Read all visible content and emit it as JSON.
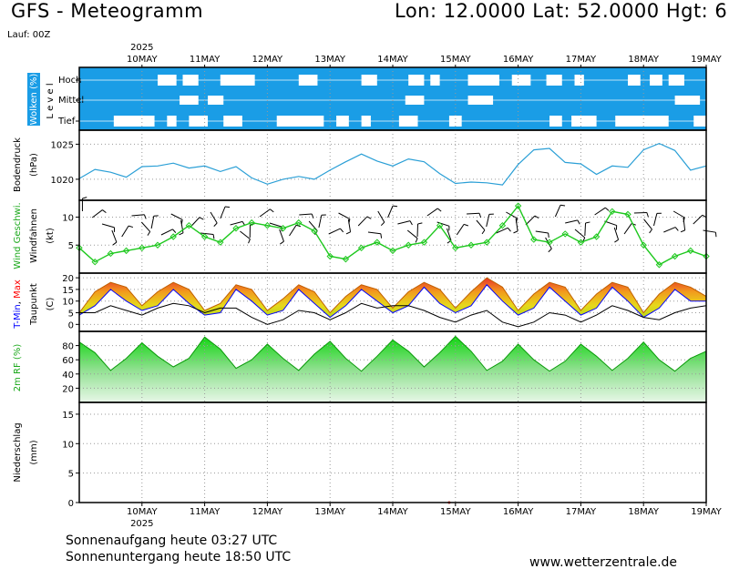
{
  "header": {
    "title": "GFS - Meteogramm",
    "location": "Lon: 12.0000  Lat: 52.0000  Hgt: 6",
    "run": "Lauf: 00Z"
  },
  "footer": {
    "sunrise": "Sonnenaufgang heute 03:27 UTC",
    "sunset": "Sonnenuntergang heute 18:50 UTC",
    "website": "www.wetterzentrale.de"
  },
  "colors": {
    "cloud_bg": "#1a9de6",
    "pressure_line": "#2a9fd6",
    "wind_line": "#1ec81e",
    "tmin": "#0000ff",
    "tmax": "#ff0000",
    "rh_fill": "#22cc22"
  },
  "chart_data": [
    {
      "type": "heatmap",
      "id": "clouds",
      "ylabel": "Wolken (%)",
      "ylabel2": "L e v e l",
      "levels": [
        "Hoch",
        "Mittel",
        "Tief"
      ],
      "x": [
        "10MAY",
        "11MAY",
        "12MAY",
        "13MAY",
        "14MAY",
        "15MAY",
        "16MAY",
        "17MAY",
        "18MAY",
        "19MAY"
      ],
      "year": "2025",
      "clear_spans": {
        "Hoch": [
          [
            10.25,
            10.55
          ],
          [
            10.65,
            10.9
          ],
          [
            11.25,
            11.8
          ],
          [
            12.5,
            12.8
          ],
          [
            13.5,
            13.75
          ],
          [
            14.25,
            14.5
          ],
          [
            14.6,
            14.75
          ],
          [
            15.2,
            15.7
          ],
          [
            15.9,
            16.2
          ],
          [
            16.45,
            16.7
          ],
          [
            16.9,
            17.05
          ],
          [
            17.75,
            17.95
          ],
          [
            18.1,
            18.3
          ],
          [
            18.4,
            18.65
          ]
        ],
        "Mittel": [
          [
            10.6,
            10.9
          ],
          [
            11.05,
            11.3
          ],
          [
            14.2,
            14.5
          ],
          [
            15.2,
            15.6
          ],
          [
            18.5,
            18.9
          ]
        ],
        "Tief": [
          [
            9.55,
            10.2
          ],
          [
            10.4,
            10.55
          ],
          [
            10.75,
            11.05
          ],
          [
            11.3,
            11.6
          ],
          [
            12.15,
            12.9
          ],
          [
            13.1,
            13.3
          ],
          [
            13.5,
            13.65
          ],
          [
            14.1,
            14.4
          ],
          [
            14.9,
            15.1
          ],
          [
            16.5,
            16.7
          ],
          [
            16.85,
            17.25
          ],
          [
            17.55,
            18.4
          ],
          [
            18.8,
            19.0
          ]
        ]
      }
    },
    {
      "type": "line",
      "id": "pressure",
      "ylabel": "Bodendruck",
      "ylabel2": "(hPa)",
      "ylim": [
        1017,
        1027
      ],
      "yticks": [
        1020,
        1025
      ],
      "x": [
        9.0,
        9.25,
        9.5,
        9.75,
        10.0,
        10.25,
        10.5,
        10.75,
        11.0,
        11.25,
        11.5,
        11.75,
        12.0,
        12.25,
        12.5,
        12.75,
        13.0,
        13.25,
        13.5,
        13.75,
        14.0,
        14.25,
        14.5,
        14.75,
        15.0,
        15.25,
        15.5,
        15.75,
        16.0,
        16.25,
        16.5,
        16.75,
        17.0,
        17.25,
        17.5,
        17.75,
        18.0,
        18.25,
        18.5,
        18.75,
        19.0
      ],
      "values": [
        1020.1,
        1021.4,
        1021.0,
        1020.3,
        1021.8,
        1021.9,
        1022.3,
        1021.6,
        1021.9,
        1021.1,
        1021.8,
        1020.2,
        1019.3,
        1020.0,
        1020.4,
        1020.0,
        1021.3,
        1022.5,
        1023.6,
        1022.6,
        1021.9,
        1022.9,
        1022.5,
        1020.8,
        1019.4,
        1019.6,
        1019.5,
        1019.2,
        1022.1,
        1024.2,
        1024.4,
        1022.4,
        1022.2,
        1020.7,
        1021.9,
        1021.7,
        1024.2,
        1025.1,
        1024.1,
        1021.3,
        1021.9
      ]
    },
    {
      "type": "line",
      "id": "wind",
      "ylabel": "Wind Geschwi.",
      "ylabel2": "Windfahnen",
      "ylabel3": "(kt)",
      "ylim": [
        0,
        13
      ],
      "yticks": [
        5,
        10
      ],
      "x": [
        9.0,
        9.25,
        9.5,
        9.75,
        10.0,
        10.25,
        10.5,
        10.75,
        11.0,
        11.25,
        11.5,
        11.75,
        12.0,
        12.25,
        12.5,
        12.75,
        13.0,
        13.25,
        13.5,
        13.75,
        14.0,
        14.25,
        14.5,
        14.75,
        15.0,
        15.25,
        15.5,
        15.75,
        16.0,
        16.25,
        16.5,
        16.75,
        17.0,
        17.25,
        17.5,
        17.75,
        18.0,
        18.25,
        18.5,
        18.75,
        19.0
      ],
      "values": [
        4.5,
        2.0,
        3.5,
        4.0,
        4.5,
        5.0,
        6.5,
        8.5,
        6.5,
        5.5,
        8.0,
        9.0,
        8.5,
        8.0,
        9.0,
        7.5,
        3.0,
        2.5,
        4.5,
        5.5,
        4.0,
        5.0,
        5.5,
        8.5,
        4.5,
        5.0,
        5.5,
        8.5,
        12.0,
        6.0,
        5.5,
        7.0,
        5.5,
        6.5,
        11.0,
        10.5,
        5.0,
        1.5,
        3.0,
        4.0,
        3.0
      ]
    },
    {
      "type": "area",
      "id": "temperature",
      "ylabel": "T-Min, Max",
      "ylabel2": "Taupunkt",
      "ylabel3": "(C)",
      "ylim": [
        -3,
        22
      ],
      "yticks": [
        0,
        5,
        10,
        15,
        20
      ],
      "x": [
        9.0,
        9.25,
        9.5,
        9.75,
        10.0,
        10.25,
        10.5,
        10.75,
        11.0,
        11.25,
        11.5,
        11.75,
        12.0,
        12.25,
        12.5,
        12.75,
        13.0,
        13.25,
        13.5,
        13.75,
        14.0,
        14.25,
        14.5,
        14.75,
        15.0,
        15.25,
        15.5,
        15.75,
        16.0,
        16.25,
        16.5,
        16.75,
        17.0,
        17.25,
        17.5,
        17.75,
        18.0,
        18.25,
        18.5,
        18.75,
        19.0
      ],
      "series": [
        {
          "name": "Max",
          "values": [
            5,
            14,
            18,
            16,
            8,
            14,
            18,
            15,
            6,
            9,
            17,
            15,
            6,
            11,
            17,
            14,
            5,
            12,
            17,
            15,
            7,
            14,
            18,
            15,
            7,
            14,
            20,
            16,
            6,
            13,
            18,
            16,
            6,
            13,
            18,
            16,
            5,
            13,
            18,
            16,
            12
          ]
        },
        {
          "name": "Min",
          "values": [
            4,
            8,
            15,
            10,
            6,
            8,
            15,
            9,
            4,
            5,
            15,
            10,
            4,
            6,
            15,
            9,
            3,
            8,
            15,
            10,
            5,
            8,
            16,
            9,
            5,
            8,
            17,
            10,
            4,
            7,
            16,
            10,
            4,
            7,
            16,
            10,
            3,
            7,
            15,
            10,
            10
          ]
        },
        {
          "name": "Taupunkt",
          "values": [
            5,
            5,
            8,
            6,
            4,
            7,
            9,
            8,
            5,
            7,
            7,
            3,
            0,
            2,
            6,
            5,
            2,
            5,
            9,
            7,
            8,
            8,
            6,
            3,
            1,
            4,
            6,
            1,
            -1,
            1,
            5,
            4,
            1,
            4,
            8,
            6,
            3,
            2,
            5,
            7,
            8
          ]
        }
      ]
    },
    {
      "type": "area",
      "id": "humidity",
      "ylabel": "2m RF (%)",
      "ylim": [
        0,
        100
      ],
      "yticks": [
        20,
        40,
        60,
        80
      ],
      "x": [
        9.0,
        9.25,
        9.5,
        9.75,
        10.0,
        10.25,
        10.5,
        10.75,
        11.0,
        11.25,
        11.5,
        11.75,
        12.0,
        12.25,
        12.5,
        12.75,
        13.0,
        13.25,
        13.5,
        13.75,
        14.0,
        14.25,
        14.5,
        14.75,
        15.0,
        15.25,
        15.5,
        15.75,
        16.0,
        16.25,
        16.5,
        16.75,
        17.0,
        17.25,
        17.5,
        17.75,
        18.0,
        18.25,
        18.5,
        18.75,
        19.0
      ],
      "values": [
        85,
        70,
        45,
        62,
        84,
        65,
        50,
        62,
        92,
        75,
        48,
        60,
        82,
        62,
        45,
        68,
        86,
        62,
        44,
        65,
        88,
        72,
        50,
        70,
        93,
        72,
        45,
        58,
        82,
        60,
        44,
        58,
        82,
        65,
        45,
        62,
        85,
        60,
        44,
        62,
        72
      ]
    },
    {
      "type": "bar",
      "id": "precip",
      "ylabel": "Niederschlag",
      "ylabel2": "(mm)",
      "ylim": [
        0,
        17
      ],
      "yticks": [
        0,
        5,
        10,
        15
      ],
      "x": [
        "10MAY",
        "11MAY",
        "12MAY",
        "13MAY",
        "14MAY",
        "15MAY",
        "16MAY",
        "17MAY",
        "18MAY",
        "19MAY"
      ],
      "values": [
        0,
        0,
        0,
        0,
        0,
        0,
        0,
        0,
        0,
        0
      ]
    }
  ]
}
